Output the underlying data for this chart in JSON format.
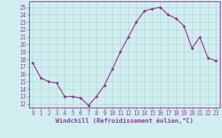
{
  "x": [
    0,
    1,
    2,
    3,
    4,
    5,
    6,
    7,
    8,
    9,
    10,
    11,
    12,
    13,
    14,
    15,
    16,
    17,
    18,
    19,
    20,
    21,
    22,
    23
  ],
  "y": [
    17.5,
    15.5,
    15.0,
    14.8,
    13.0,
    13.0,
    12.8,
    11.8,
    13.0,
    14.5,
    16.7,
    19.0,
    21.0,
    23.0,
    24.5,
    24.8,
    25.0,
    24.0,
    23.5,
    22.5,
    19.5,
    21.0,
    18.2,
    17.8
  ],
  "line_color": "#993399",
  "marker": "D",
  "markersize": 2.0,
  "linewidth": 1.0,
  "bg_color": "#d0eef0",
  "grid_color": "#b0d8d0",
  "axis_color": "#993399",
  "ylabel_ticks": [
    12,
    13,
    14,
    15,
    16,
    17,
    18,
    19,
    20,
    21,
    22,
    23,
    24,
    25
  ],
  "xlabel": "Windchill (Refroidissement éolien,°C)",
  "xlabel_fontsize": 6.5,
  "tick_fontsize": 5.5,
  "ylim": [
    11.5,
    25.8
  ],
  "xlim": [
    -0.5,
    23.5
  ]
}
